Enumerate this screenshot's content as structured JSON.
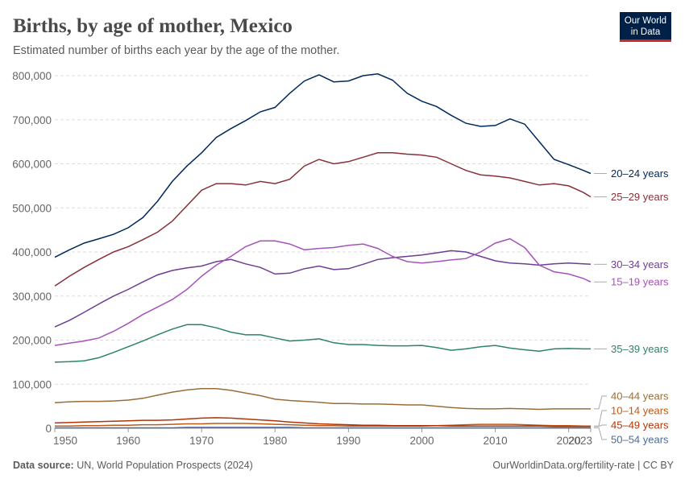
{
  "chart_data": {
    "type": "line",
    "title": "Births, by age of mother, Mexico",
    "subtitle": "Estimated number of births each year by the age of the mother.",
    "source_label": "Data source:",
    "source": "UN, World Population Prospects (2024)",
    "credit": "OurWorldinData.org/fertility-rate | CC BY",
    "logo": [
      "Our World",
      "in Data"
    ],
    "x": [
      1950,
      1952,
      1954,
      1956,
      1958,
      1960,
      1962,
      1964,
      1966,
      1968,
      1970,
      1972,
      1974,
      1976,
      1978,
      1980,
      1982,
      1984,
      1986,
      1988,
      1990,
      1992,
      1994,
      1996,
      1998,
      2000,
      2002,
      2004,
      2006,
      2008,
      2010,
      2012,
      2014,
      2016,
      2018,
      2020,
      2022,
      2023
    ],
    "xlim": [
      1950,
      2023
    ],
    "xticks": [
      1950,
      1960,
      1970,
      1980,
      1990,
      2000,
      2010,
      2020,
      2023
    ],
    "ylim": [
      0,
      800000
    ],
    "yticks": [
      0,
      {
        "value": 100000,
        "label": "100,000"
      },
      {
        "value": 200000,
        "label": "200,000"
      },
      {
        "value": 300000,
        "label": "300,000"
      },
      {
        "value": 400000,
        "label": "400,000"
      },
      {
        "value": 500000,
        "label": "500,000"
      },
      {
        "value": 600000,
        "label": "600,000"
      },
      {
        "value": 700000,
        "label": "700,000"
      },
      {
        "value": 800000,
        "label": "800,000"
      }
    ],
    "grid": true,
    "series": [
      {
        "name": "20–24 years",
        "color": "#00295b",
        "values": [
          388000,
          405000,
          420000,
          430000,
          440000,
          455000,
          478000,
          515000,
          560000,
          595000,
          625000,
          660000,
          680000,
          698000,
          718000,
          728000,
          760000,
          788000,
          802000,
          786000,
          788000,
          800000,
          804000,
          790000,
          760000,
          742000,
          730000,
          710000,
          692000,
          685000,
          687000,
          702000,
          690000,
          650000,
          610000,
          598000,
          585000,
          578000
        ]
      },
      {
        "name": "25–29 years",
        "color": "#883039",
        "values": [
          323000,
          345000,
          365000,
          383000,
          400000,
          412000,
          428000,
          445000,
          470000,
          505000,
          540000,
          555000,
          555000,
          552000,
          560000,
          555000,
          565000,
          595000,
          610000,
          600000,
          605000,
          615000,
          625000,
          625000,
          622000,
          620000,
          615000,
          600000,
          585000,
          575000,
          572000,
          568000,
          560000,
          552000,
          555000,
          550000,
          535000,
          525000
        ]
      },
      {
        "name": "30–34 years",
        "color": "#6d3e91",
        "values": [
          230000,
          245000,
          263000,
          282000,
          300000,
          315000,
          332000,
          348000,
          358000,
          364000,
          368000,
          378000,
          383000,
          373000,
          365000,
          350000,
          352000,
          362000,
          368000,
          360000,
          362000,
          372000,
          383000,
          387000,
          390000,
          393000,
          398000,
          403000,
          400000,
          390000,
          380000,
          375000,
          373000,
          370000,
          373000,
          375000,
          373000,
          372000
        ]
      },
      {
        "name": "15–19 years",
        "color": "#a652ba",
        "values": [
          188000,
          193000,
          198000,
          205000,
          220000,
          238000,
          258000,
          275000,
          292000,
          315000,
          345000,
          370000,
          390000,
          412000,
          425000,
          425000,
          418000,
          405000,
          408000,
          410000,
          415000,
          418000,
          408000,
          390000,
          378000,
          375000,
          378000,
          382000,
          385000,
          400000,
          420000,
          430000,
          410000,
          370000,
          355000,
          350000,
          340000,
          332000
        ]
      },
      {
        "name": "35–39 years",
        "color": "#2c8465",
        "values": [
          150000,
          151000,
          153000,
          160000,
          172000,
          185000,
          198000,
          212000,
          225000,
          235000,
          235000,
          228000,
          218000,
          212000,
          212000,
          205000,
          198000,
          200000,
          203000,
          194000,
          190000,
          190000,
          188000,
          187000,
          187000,
          188000,
          183000,
          177000,
          180000,
          185000,
          188000,
          182000,
          178000,
          175000,
          180000,
          181000,
          180000,
          180000
        ]
      },
      {
        "name": "40–44 years",
        "color": "#996d39",
        "values": [
          58000,
          60000,
          61000,
          61000,
          62000,
          64000,
          68000,
          75000,
          82000,
          87000,
          90000,
          90000,
          86000,
          80000,
          74000,
          66000,
          63000,
          61000,
          59000,
          56000,
          56000,
          55000,
          55000,
          54000,
          53000,
          53000,
          50000,
          47000,
          45000,
          44000,
          44000,
          45000,
          44000,
          43000,
          44000,
          44000,
          44000,
          44000
        ]
      },
      {
        "name": "10–14 years",
        "color": "#c05917",
        "values": [
          5000,
          5000,
          6000,
          6000,
          7000,
          7000,
          8000,
          8000,
          9000,
          10000,
          10000,
          11000,
          11000,
          11000,
          10000,
          9000,
          8000,
          7000,
          6000,
          6000,
          5000,
          5000,
          5000,
          5000,
          5000,
          5000,
          6000,
          7000,
          8000,
          9000,
          9000,
          9000,
          8000,
          7000,
          6000,
          6000,
          5000,
          5000
        ]
      },
      {
        "name": "45–49 years",
        "color": "#b13507",
        "values": [
          12000,
          13000,
          14000,
          15000,
          16000,
          17000,
          18000,
          18000,
          19000,
          21000,
          23000,
          24000,
          23000,
          21000,
          19000,
          17000,
          14000,
          12000,
          10000,
          9000,
          8000,
          7000,
          7000,
          6000,
          6000,
          6000,
          6000,
          5000,
          5000,
          5000,
          5000,
          5000,
          5000,
          5000,
          4000,
          4000,
          4000,
          4000
        ]
      },
      {
        "name": "50–54 years",
        "color": "#4c6a9c",
        "values": [
          1000,
          1000,
          1000,
          1000,
          1000,
          1000,
          1000,
          1000,
          1000,
          2000,
          2000,
          2000,
          2000,
          2000,
          2000,
          2000,
          2000,
          1000,
          1000,
          1000,
          1000,
          1000,
          1000,
          1000,
          1000,
          1000,
          1000,
          1000,
          1000,
          1000,
          1000,
          1000,
          1000,
          1000,
          1000,
          1000,
          1000,
          1000
        ]
      }
    ]
  }
}
